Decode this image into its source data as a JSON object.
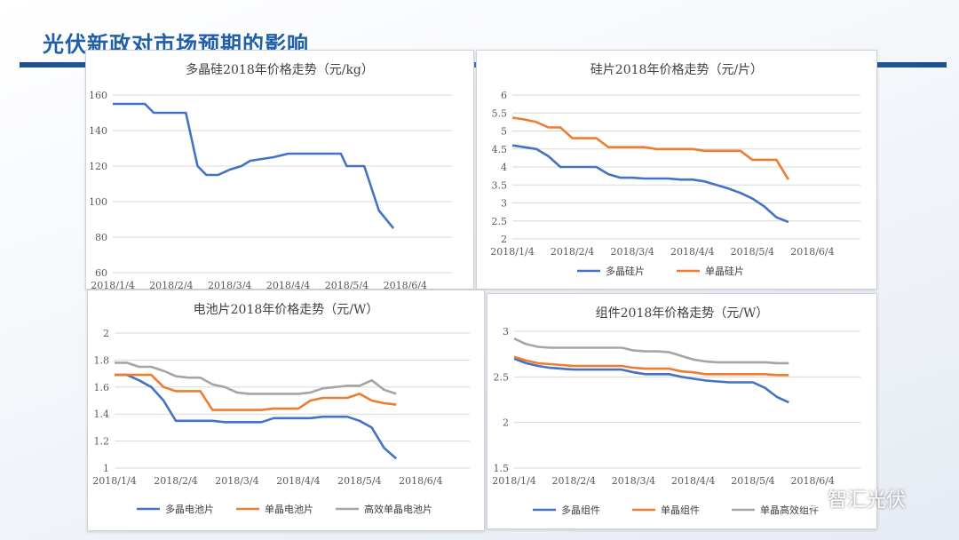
{
  "slide": {
    "title": "光伏新政对市场预期的影响",
    "watermark": "智汇光伏"
  },
  "colors": {
    "blue": "#4472C4",
    "orange": "#ED7D31",
    "gray": "#A5A5A5",
    "accent": "#1f5fa8"
  },
  "chart_data": [
    {
      "type": "line",
      "title": "多晶硅2018年价格走势（元/kg）",
      "ylim": [
        60,
        160
      ],
      "yticks": [
        "60",
        "80",
        "100",
        "120",
        "140",
        "160"
      ],
      "xticks": [
        "2018/1/4",
        "2018/2/4",
        "2018/3/4",
        "2018/4/4",
        "2018/5/4",
        "2018/6/4"
      ],
      "grid": true,
      "legend": "none",
      "series": [
        {
          "color": "#4472C4",
          "values": [
            [
              0,
              155
            ],
            [
              0.1,
              155
            ],
            [
              0.2,
              155
            ],
            [
              0.35,
              155
            ],
            [
              0.45,
              155
            ],
            [
              0.55,
              155
            ],
            [
              0.7,
              150
            ],
            [
              0.8,
              150
            ],
            [
              1.0,
              150
            ],
            [
              1.1,
              150
            ],
            [
              1.25,
              150
            ],
            [
              1.45,
              120
            ],
            [
              1.6,
              115
            ],
            [
              1.8,
              115
            ],
            [
              2.0,
              118
            ],
            [
              2.2,
              120
            ],
            [
              2.35,
              123
            ],
            [
              2.55,
              124
            ],
            [
              2.75,
              125
            ],
            [
              3.0,
              127
            ],
            [
              3.3,
              127
            ],
            [
              3.6,
              127
            ],
            [
              3.9,
              127
            ],
            [
              4.0,
              120
            ],
            [
              4.3,
              120
            ],
            [
              4.55,
              95
            ],
            [
              4.8,
              85
            ]
          ]
        }
      ]
    },
    {
      "type": "line",
      "title": "硅片2018年价格走势（元/片）",
      "ylim": [
        2,
        6
      ],
      "yticks": [
        "2",
        "2.5",
        "3",
        "3.5",
        "4",
        "4.5",
        "5",
        "5.5",
        "6"
      ],
      "xticks": [
        "2018/1/4",
        "2018/2/4",
        "2018/3/4",
        "2018/4/4",
        "2018/5/4",
        "2018/6/4"
      ],
      "grid": true,
      "legend": "bottom",
      "series": [
        {
          "name": "多晶硅片",
          "color": "#4472C4",
          "values": [
            [
              0,
              4.6
            ],
            [
              0.2,
              4.55
            ],
            [
              0.4,
              4.5
            ],
            [
              0.6,
              4.3
            ],
            [
              0.8,
              4.0
            ],
            [
              1.0,
              4.0
            ],
            [
              1.2,
              4.0
            ],
            [
              1.4,
              4.0
            ],
            [
              1.6,
              3.8
            ],
            [
              1.8,
              3.7
            ],
            [
              2.0,
              3.7
            ],
            [
              2.2,
              3.68
            ],
            [
              2.4,
              3.68
            ],
            [
              2.6,
              3.68
            ],
            [
              2.8,
              3.65
            ],
            [
              3.0,
              3.65
            ],
            [
              3.2,
              3.6
            ],
            [
              3.4,
              3.5
            ],
            [
              3.6,
              3.4
            ],
            [
              3.8,
              3.28
            ],
            [
              4.0,
              3.12
            ],
            [
              4.2,
              2.9
            ],
            [
              4.4,
              2.6
            ],
            [
              4.6,
              2.47
            ]
          ]
        },
        {
          "name": "单晶硅片",
          "color": "#ED7D31",
          "values": [
            [
              0,
              5.37
            ],
            [
              0.2,
              5.32
            ],
            [
              0.4,
              5.25
            ],
            [
              0.6,
              5.1
            ],
            [
              0.8,
              5.1
            ],
            [
              1.0,
              4.8
            ],
            [
              1.2,
              4.8
            ],
            [
              1.4,
              4.8
            ],
            [
              1.6,
              4.55
            ],
            [
              1.8,
              4.55
            ],
            [
              2.0,
              4.55
            ],
            [
              2.2,
              4.55
            ],
            [
              2.4,
              4.5
            ],
            [
              2.6,
              4.5
            ],
            [
              2.8,
              4.5
            ],
            [
              3.0,
              4.5
            ],
            [
              3.2,
              4.45
            ],
            [
              3.4,
              4.45
            ],
            [
              3.6,
              4.45
            ],
            [
              3.8,
              4.45
            ],
            [
              4.0,
              4.2
            ],
            [
              4.2,
              4.2
            ],
            [
              4.4,
              4.2
            ],
            [
              4.6,
              3.65
            ]
          ]
        }
      ]
    },
    {
      "type": "line",
      "title": "电池片2018年价格走势（元/W）",
      "ylim": [
        1,
        2
      ],
      "yticks": [
        "1",
        "1.2",
        "1.4",
        "1.6",
        "1.8",
        "2"
      ],
      "xticks": [
        "2018/1/4",
        "2018/2/4",
        "2018/3/4",
        "2018/4/4",
        "2018/5/4",
        "2018/6/4"
      ],
      "grid": true,
      "legend": "bottom",
      "series": [
        {
          "name": "多晶电池片",
          "color": "#4472C4",
          "values": [
            [
              0,
              1.69
            ],
            [
              0.2,
              1.69
            ],
            [
              0.4,
              1.65
            ],
            [
              0.6,
              1.6
            ],
            [
              0.8,
              1.5
            ],
            [
              1.0,
              1.35
            ],
            [
              1.2,
              1.35
            ],
            [
              1.4,
              1.35
            ],
            [
              1.6,
              1.35
            ],
            [
              1.8,
              1.34
            ],
            [
              2.0,
              1.34
            ],
            [
              2.2,
              1.34
            ],
            [
              2.4,
              1.34
            ],
            [
              2.6,
              1.37
            ],
            [
              2.8,
              1.37
            ],
            [
              3.0,
              1.37
            ],
            [
              3.2,
              1.37
            ],
            [
              3.4,
              1.38
            ],
            [
              3.6,
              1.38
            ],
            [
              3.8,
              1.38
            ],
            [
              4.0,
              1.35
            ],
            [
              4.2,
              1.3
            ],
            [
              4.4,
              1.15
            ],
            [
              4.6,
              1.07
            ]
          ]
        },
        {
          "name": "单晶电池片",
          "color": "#ED7D31",
          "values": [
            [
              0,
              1.69
            ],
            [
              0.2,
              1.69
            ],
            [
              0.4,
              1.69
            ],
            [
              0.6,
              1.69
            ],
            [
              0.8,
              1.6
            ],
            [
              1.0,
              1.57
            ],
            [
              1.2,
              1.57
            ],
            [
              1.4,
              1.57
            ],
            [
              1.6,
              1.43
            ],
            [
              1.8,
              1.43
            ],
            [
              2.0,
              1.43
            ],
            [
              2.2,
              1.43
            ],
            [
              2.4,
              1.43
            ],
            [
              2.6,
              1.44
            ],
            [
              2.8,
              1.44
            ],
            [
              3.0,
              1.44
            ],
            [
              3.2,
              1.5
            ],
            [
              3.4,
              1.52
            ],
            [
              3.6,
              1.52
            ],
            [
              3.8,
              1.52
            ],
            [
              4.0,
              1.55
            ],
            [
              4.2,
              1.5
            ],
            [
              4.4,
              1.48
            ],
            [
              4.6,
              1.47
            ]
          ]
        },
        {
          "name": "高效单晶电池片",
          "color": "#A5A5A5",
          "values": [
            [
              0,
              1.78
            ],
            [
              0.2,
              1.78
            ],
            [
              0.4,
              1.75
            ],
            [
              0.6,
              1.75
            ],
            [
              0.8,
              1.72
            ],
            [
              1.0,
              1.68
            ],
            [
              1.2,
              1.67
            ],
            [
              1.4,
              1.67
            ],
            [
              1.6,
              1.62
            ],
            [
              1.8,
              1.6
            ],
            [
              2.0,
              1.56
            ],
            [
              2.2,
              1.55
            ],
            [
              2.4,
              1.55
            ],
            [
              2.6,
              1.55
            ],
            [
              2.8,
              1.55
            ],
            [
              3.0,
              1.55
            ],
            [
              3.2,
              1.56
            ],
            [
              3.4,
              1.59
            ],
            [
              3.6,
              1.6
            ],
            [
              3.8,
              1.61
            ],
            [
              4.0,
              1.61
            ],
            [
              4.2,
              1.65
            ],
            [
              4.4,
              1.58
            ],
            [
              4.6,
              1.55
            ]
          ]
        }
      ]
    },
    {
      "type": "line",
      "title": "组件2018年价格走势（元/W）",
      "ylim": [
        1.5,
        3
      ],
      "yticks": [
        "1.5",
        "2",
        "2.5",
        "3"
      ],
      "xticks": [
        "2018/1/4",
        "2018/2/4",
        "2018/3/4",
        "2018/4/4",
        "2018/5/4",
        "2018/6/4"
      ],
      "grid": true,
      "legend": "bottom",
      "series": [
        {
          "name": "多晶组件",
          "color": "#4472C4",
          "values": [
            [
              0,
              2.7
            ],
            [
              0.2,
              2.65
            ],
            [
              0.4,
              2.62
            ],
            [
              0.6,
              2.6
            ],
            [
              0.8,
              2.59
            ],
            [
              1.0,
              2.58
            ],
            [
              1.2,
              2.58
            ],
            [
              1.4,
              2.58
            ],
            [
              1.6,
              2.58
            ],
            [
              1.8,
              2.58
            ],
            [
              2.0,
              2.55
            ],
            [
              2.2,
              2.53
            ],
            [
              2.4,
              2.53
            ],
            [
              2.6,
              2.53
            ],
            [
              2.8,
              2.5
            ],
            [
              3.0,
              2.48
            ],
            [
              3.2,
              2.46
            ],
            [
              3.4,
              2.45
            ],
            [
              3.6,
              2.44
            ],
            [
              3.8,
              2.44
            ],
            [
              4.0,
              2.44
            ],
            [
              4.2,
              2.38
            ],
            [
              4.4,
              2.28
            ],
            [
              4.6,
              2.22
            ]
          ]
        },
        {
          "name": "单晶组件",
          "color": "#ED7D31",
          "values": [
            [
              0,
              2.72
            ],
            [
              0.2,
              2.68
            ],
            [
              0.4,
              2.65
            ],
            [
              0.6,
              2.64
            ],
            [
              0.8,
              2.63
            ],
            [
              1.0,
              2.62
            ],
            [
              1.2,
              2.62
            ],
            [
              1.4,
              2.62
            ],
            [
              1.6,
              2.62
            ],
            [
              1.8,
              2.62
            ],
            [
              2.0,
              2.6
            ],
            [
              2.2,
              2.59
            ],
            [
              2.4,
              2.59
            ],
            [
              2.6,
              2.59
            ],
            [
              2.8,
              2.56
            ],
            [
              3.0,
              2.55
            ],
            [
              3.2,
              2.53
            ],
            [
              3.4,
              2.53
            ],
            [
              3.6,
              2.53
            ],
            [
              3.8,
              2.53
            ],
            [
              4.0,
              2.53
            ],
            [
              4.2,
              2.53
            ],
            [
              4.4,
              2.52
            ],
            [
              4.6,
              2.52
            ]
          ]
        },
        {
          "name": "单晶高效组件",
          "color": "#A5A5A5",
          "values": [
            [
              0,
              2.92
            ],
            [
              0.2,
              2.86
            ],
            [
              0.4,
              2.83
            ],
            [
              0.6,
              2.82
            ],
            [
              0.8,
              2.82
            ],
            [
              1.0,
              2.82
            ],
            [
              1.2,
              2.82
            ],
            [
              1.4,
              2.82
            ],
            [
              1.6,
              2.82
            ],
            [
              1.8,
              2.82
            ],
            [
              2.0,
              2.79
            ],
            [
              2.2,
              2.78
            ],
            [
              2.4,
              2.78
            ],
            [
              2.6,
              2.77
            ],
            [
              2.8,
              2.73
            ],
            [
              3.0,
              2.69
            ],
            [
              3.2,
              2.67
            ],
            [
              3.4,
              2.66
            ],
            [
              3.6,
              2.66
            ],
            [
              3.8,
              2.66
            ],
            [
              4.0,
              2.66
            ],
            [
              4.2,
              2.66
            ],
            [
              4.4,
              2.65
            ],
            [
              4.6,
              2.65
            ]
          ]
        }
      ]
    }
  ]
}
